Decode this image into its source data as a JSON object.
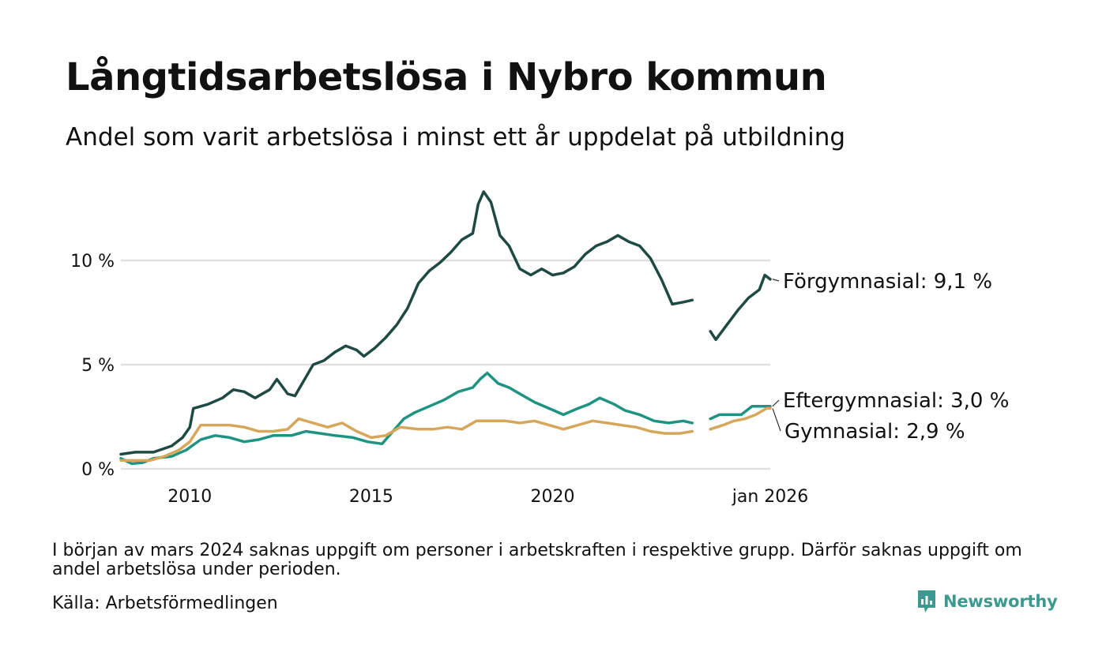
{
  "title": "Långtidsarbetslösa i Nybro kommun",
  "subtitle": "Andel som varit arbetslösa i minst ett år uppdelat på utbildning",
  "note": "I början av mars 2024 saknas uppgift om personer i arbetskraften i respektive grupp. Därför saknas uppgift om andel arbetslösa under perioden.",
  "source": "Källa: Arbetsförmedlingen",
  "brand": "Newsworthy",
  "colors": {
    "forgymnasial": "#1f4a42",
    "eftergymnasial": "#1f9382",
    "gymnasial": "#d6a75b",
    "grid": "#e0e0e0",
    "brand": "#3a9a8f"
  },
  "chart_data": {
    "type": "line",
    "xlabel": "",
    "ylabel": "",
    "xlim": [
      2008.1,
      2026.0
    ],
    "ylim": [
      0,
      14
    ],
    "yticks": [
      {
        "v": 0,
        "label": "0 %"
      },
      {
        "v": 5,
        "label": "5 %"
      },
      {
        "v": 10,
        "label": "10 %"
      }
    ],
    "xticks": [
      {
        "v": 2010,
        "label": "2010"
      },
      {
        "v": 2015,
        "label": "2015"
      },
      {
        "v": 2020,
        "label": "2020"
      },
      {
        "v": 2026,
        "label": "jan 2026"
      }
    ],
    "gap": [
      2023.85,
      2024.35
    ],
    "series": [
      {
        "name": "Förgymnasial",
        "end_label": "Förgymnasial: 9,1 %",
        "color": "#1f4a42",
        "points": [
          [
            2008.1,
            0.7
          ],
          [
            2008.5,
            0.8
          ],
          [
            2009.0,
            0.8
          ],
          [
            2009.5,
            1.1
          ],
          [
            2009.8,
            1.5
          ],
          [
            2010.0,
            2.0
          ],
          [
            2010.1,
            2.9
          ],
          [
            2010.5,
            3.1
          ],
          [
            2010.9,
            3.4
          ],
          [
            2011.2,
            3.8
          ],
          [
            2011.5,
            3.7
          ],
          [
            2011.8,
            3.4
          ],
          [
            2012.2,
            3.8
          ],
          [
            2012.4,
            4.3
          ],
          [
            2012.7,
            3.6
          ],
          [
            2012.9,
            3.5
          ],
          [
            2013.1,
            4.1
          ],
          [
            2013.4,
            5.0
          ],
          [
            2013.7,
            5.2
          ],
          [
            2014.0,
            5.6
          ],
          [
            2014.3,
            5.9
          ],
          [
            2014.6,
            5.7
          ],
          [
            2014.8,
            5.4
          ],
          [
            2015.1,
            5.8
          ],
          [
            2015.4,
            6.3
          ],
          [
            2015.7,
            6.9
          ],
          [
            2016.0,
            7.7
          ],
          [
            2016.3,
            8.9
          ],
          [
            2016.6,
            9.5
          ],
          [
            2016.9,
            9.9
          ],
          [
            2017.2,
            10.4
          ],
          [
            2017.5,
            11.0
          ],
          [
            2017.8,
            11.3
          ],
          [
            2017.95,
            12.7
          ],
          [
            2018.1,
            13.3
          ],
          [
            2018.3,
            12.8
          ],
          [
            2018.55,
            11.2
          ],
          [
            2018.8,
            10.7
          ],
          [
            2019.1,
            9.6
          ],
          [
            2019.4,
            9.3
          ],
          [
            2019.7,
            9.6
          ],
          [
            2020.0,
            9.3
          ],
          [
            2020.3,
            9.4
          ],
          [
            2020.6,
            9.7
          ],
          [
            2020.9,
            10.3
          ],
          [
            2021.2,
            10.7
          ],
          [
            2021.5,
            10.9
          ],
          [
            2021.8,
            11.2
          ],
          [
            2022.1,
            10.9
          ],
          [
            2022.4,
            10.7
          ],
          [
            2022.7,
            10.1
          ],
          [
            2023.0,
            9.1
          ],
          [
            2023.3,
            7.9
          ],
          [
            2023.6,
            8.0
          ],
          [
            2023.85,
            8.1
          ],
          [
            2024.35,
            6.6
          ],
          [
            2024.5,
            6.2
          ],
          [
            2024.8,
            6.9
          ],
          [
            2025.1,
            7.6
          ],
          [
            2025.4,
            8.2
          ],
          [
            2025.7,
            8.6
          ],
          [
            2025.85,
            9.3
          ],
          [
            2026.0,
            9.1
          ]
        ]
      },
      {
        "name": "Eftergymnasial",
        "end_label": "Eftergymnasial: 3,0 %",
        "color": "#1f9382",
        "points": [
          [
            2008.1,
            0.5
          ],
          [
            2008.4,
            0.25
          ],
          [
            2008.7,
            0.3
          ],
          [
            2009.0,
            0.5
          ],
          [
            2009.5,
            0.6
          ],
          [
            2009.9,
            0.9
          ],
          [
            2010.3,
            1.4
          ],
          [
            2010.7,
            1.6
          ],
          [
            2011.1,
            1.5
          ],
          [
            2011.5,
            1.3
          ],
          [
            2011.9,
            1.4
          ],
          [
            2012.3,
            1.6
          ],
          [
            2012.8,
            1.6
          ],
          [
            2013.2,
            1.8
          ],
          [
            2013.6,
            1.7
          ],
          [
            2014.0,
            1.6
          ],
          [
            2014.5,
            1.5
          ],
          [
            2014.9,
            1.3
          ],
          [
            2015.3,
            1.2
          ],
          [
            2015.6,
            1.8
          ],
          [
            2015.9,
            2.4
          ],
          [
            2016.2,
            2.7
          ],
          [
            2016.6,
            3.0
          ],
          [
            2017.0,
            3.3
          ],
          [
            2017.4,
            3.7
          ],
          [
            2017.8,
            3.9
          ],
          [
            2018.0,
            4.3
          ],
          [
            2018.2,
            4.6
          ],
          [
            2018.5,
            4.1
          ],
          [
            2018.8,
            3.9
          ],
          [
            2019.1,
            3.6
          ],
          [
            2019.5,
            3.2
          ],
          [
            2019.9,
            2.9
          ],
          [
            2020.3,
            2.6
          ],
          [
            2020.7,
            2.9
          ],
          [
            2021.0,
            3.1
          ],
          [
            2021.3,
            3.4
          ],
          [
            2021.7,
            3.1
          ],
          [
            2022.0,
            2.8
          ],
          [
            2022.4,
            2.6
          ],
          [
            2022.8,
            2.3
          ],
          [
            2023.2,
            2.2
          ],
          [
            2023.6,
            2.3
          ],
          [
            2023.85,
            2.2
          ],
          [
            2024.35,
            2.4
          ],
          [
            2024.6,
            2.6
          ],
          [
            2024.9,
            2.6
          ],
          [
            2025.2,
            2.6
          ],
          [
            2025.5,
            3.0
          ],
          [
            2025.8,
            3.0
          ],
          [
            2026.0,
            3.0
          ]
        ]
      },
      {
        "name": "Gymnasial",
        "end_label": "Gymnasial: 2,9 %",
        "color": "#d6a75b",
        "points": [
          [
            2008.1,
            0.4
          ],
          [
            2008.5,
            0.4
          ],
          [
            2008.9,
            0.4
          ],
          [
            2009.3,
            0.6
          ],
          [
            2009.7,
            0.9
          ],
          [
            2010.0,
            1.3
          ],
          [
            2010.3,
            2.1
          ],
          [
            2010.7,
            2.1
          ],
          [
            2011.1,
            2.1
          ],
          [
            2011.5,
            2.0
          ],
          [
            2011.9,
            1.8
          ],
          [
            2012.3,
            1.8
          ],
          [
            2012.7,
            1.9
          ],
          [
            2013.0,
            2.4
          ],
          [
            2013.4,
            2.2
          ],
          [
            2013.8,
            2.0
          ],
          [
            2014.2,
            2.2
          ],
          [
            2014.6,
            1.8
          ],
          [
            2015.0,
            1.5
          ],
          [
            2015.4,
            1.6
          ],
          [
            2015.8,
            2.0
          ],
          [
            2016.3,
            1.9
          ],
          [
            2016.7,
            1.9
          ],
          [
            2017.1,
            2.0
          ],
          [
            2017.5,
            1.9
          ],
          [
            2017.9,
            2.3
          ],
          [
            2018.3,
            2.3
          ],
          [
            2018.7,
            2.3
          ],
          [
            2019.1,
            2.2
          ],
          [
            2019.5,
            2.3
          ],
          [
            2019.9,
            2.1
          ],
          [
            2020.3,
            1.9
          ],
          [
            2020.7,
            2.1
          ],
          [
            2021.1,
            2.3
          ],
          [
            2021.5,
            2.2
          ],
          [
            2021.9,
            2.1
          ],
          [
            2022.3,
            2.0
          ],
          [
            2022.7,
            1.8
          ],
          [
            2023.1,
            1.7
          ],
          [
            2023.5,
            1.7
          ],
          [
            2023.85,
            1.8
          ],
          [
            2024.35,
            1.9
          ],
          [
            2024.7,
            2.1
          ],
          [
            2025.0,
            2.3
          ],
          [
            2025.3,
            2.4
          ],
          [
            2025.6,
            2.6
          ],
          [
            2025.9,
            2.9
          ],
          [
            2026.0,
            2.9
          ]
        ]
      }
    ]
  }
}
